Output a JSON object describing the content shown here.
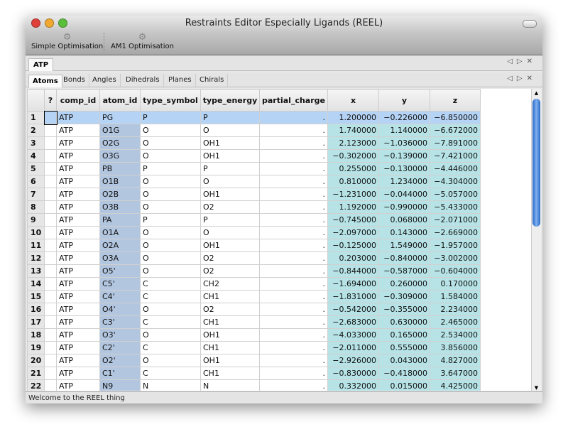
{
  "window": {
    "title": "Restraints Editor Especially Ligands (REEL)"
  },
  "toolbar": {
    "items": [
      {
        "label": "Simple Optimisation",
        "icon": "gear-icon"
      },
      {
        "label": "AM1 Optimisation",
        "icon": "gear-icon"
      }
    ]
  },
  "ligand_tabs": [
    {
      "label": "ATP",
      "active": true
    }
  ],
  "sub_tabs": [
    {
      "label": "Atoms",
      "active": true
    },
    {
      "label": "Bonds"
    },
    {
      "label": "Angles"
    },
    {
      "label": "Dihedrals"
    },
    {
      "label": "Planes"
    },
    {
      "label": "Chirals"
    }
  ],
  "tab_controls": {
    "prev": "◁",
    "next": "▷",
    "close": "✕"
  },
  "table": {
    "columns": [
      "?",
      "comp_id",
      "atom_id",
      "type_symbol",
      "type_energy",
      "partial_charge",
      "x",
      "y",
      "z"
    ],
    "selected_row": 1,
    "rows": [
      [
        "1",
        "ATP",
        "PG",
        "P",
        "P",
        ".",
        "1.200000",
        "−0.226000",
        "−6.850000"
      ],
      [
        "2",
        "ATP",
        "O1G",
        "O",
        "O",
        ".",
        "1.740000",
        "1.140000",
        "−6.672000"
      ],
      [
        "3",
        "ATP",
        "O2G",
        "O",
        "OH1",
        ".",
        "2.123000",
        "−1.036000",
        "−7.891000"
      ],
      [
        "4",
        "ATP",
        "O3G",
        "O",
        "OH1",
        ".",
        "−0.302000",
        "−0.139000",
        "−7.421000"
      ],
      [
        "5",
        "ATP",
        "PB",
        "P",
        "P",
        ".",
        "0.255000",
        "−0.130000",
        "−4.446000"
      ],
      [
        "6",
        "ATP",
        "O1B",
        "O",
        "O",
        ".",
        "0.810000",
        "1.234000",
        "−4.304000"
      ],
      [
        "7",
        "ATP",
        "O2B",
        "O",
        "OH1",
        ".",
        "−1.231000",
        "−0.044000",
        "−5.057000"
      ],
      [
        "8",
        "ATP",
        "O3B",
        "O",
        "O2",
        ".",
        "1.192000",
        "−0.990000",
        "−5.433000"
      ],
      [
        "9",
        "ATP",
        "PA",
        "P",
        "P",
        ".",
        "−0.745000",
        "0.068000",
        "−2.071000"
      ],
      [
        "10",
        "ATP",
        "O1A",
        "O",
        "O",
        ".",
        "−2.097000",
        "0.143000",
        "−2.669000"
      ],
      [
        "11",
        "ATP",
        "O2A",
        "O",
        "OH1",
        ".",
        "−0.125000",
        "1.549000",
        "−1.957000"
      ],
      [
        "12",
        "ATP",
        "O3A",
        "O",
        "O2",
        ".",
        "0.203000",
        "−0.840000",
        "−3.002000"
      ],
      [
        "13",
        "ATP",
        "O5'",
        "O",
        "O2",
        ".",
        "−0.844000",
        "−0.587000",
        "−0.604000"
      ],
      [
        "14",
        "ATP",
        "C5'",
        "C",
        "CH2",
        ".",
        "−1.694000",
        "0.260000",
        "0.170000"
      ],
      [
        "15",
        "ATP",
        "C4'",
        "C",
        "CH1",
        ".",
        "−1.831000",
        "−0.309000",
        "1.584000"
      ],
      [
        "16",
        "ATP",
        "O4'",
        "O",
        "O2",
        ".",
        "−0.542000",
        "−0.355000",
        "2.234000"
      ],
      [
        "17",
        "ATP",
        "C3'",
        "C",
        "CH1",
        ".",
        "−2.683000",
        "0.630000",
        "2.465000"
      ],
      [
        "18",
        "ATP",
        "O3'",
        "O",
        "OH1",
        ".",
        "−4.033000",
        "0.165000",
        "2.534000"
      ],
      [
        "19",
        "ATP",
        "C2'",
        "C",
        "CH1",
        ".",
        "−2.011000",
        "0.555000",
        "3.856000"
      ],
      [
        "20",
        "ATP",
        "O2'",
        "O",
        "OH1",
        ".",
        "−2.926000",
        "0.043000",
        "4.827000"
      ],
      [
        "21",
        "ATP",
        "C1'",
        "C",
        "CH1",
        ".",
        "−0.830000",
        "−0.418000",
        "3.647000"
      ],
      [
        "22",
        "ATP",
        "N9",
        "N",
        "N",
        ".",
        "0.332000",
        "0.015000",
        "4.425000"
      ]
    ]
  },
  "status": "Welcome to the REEL thing"
}
